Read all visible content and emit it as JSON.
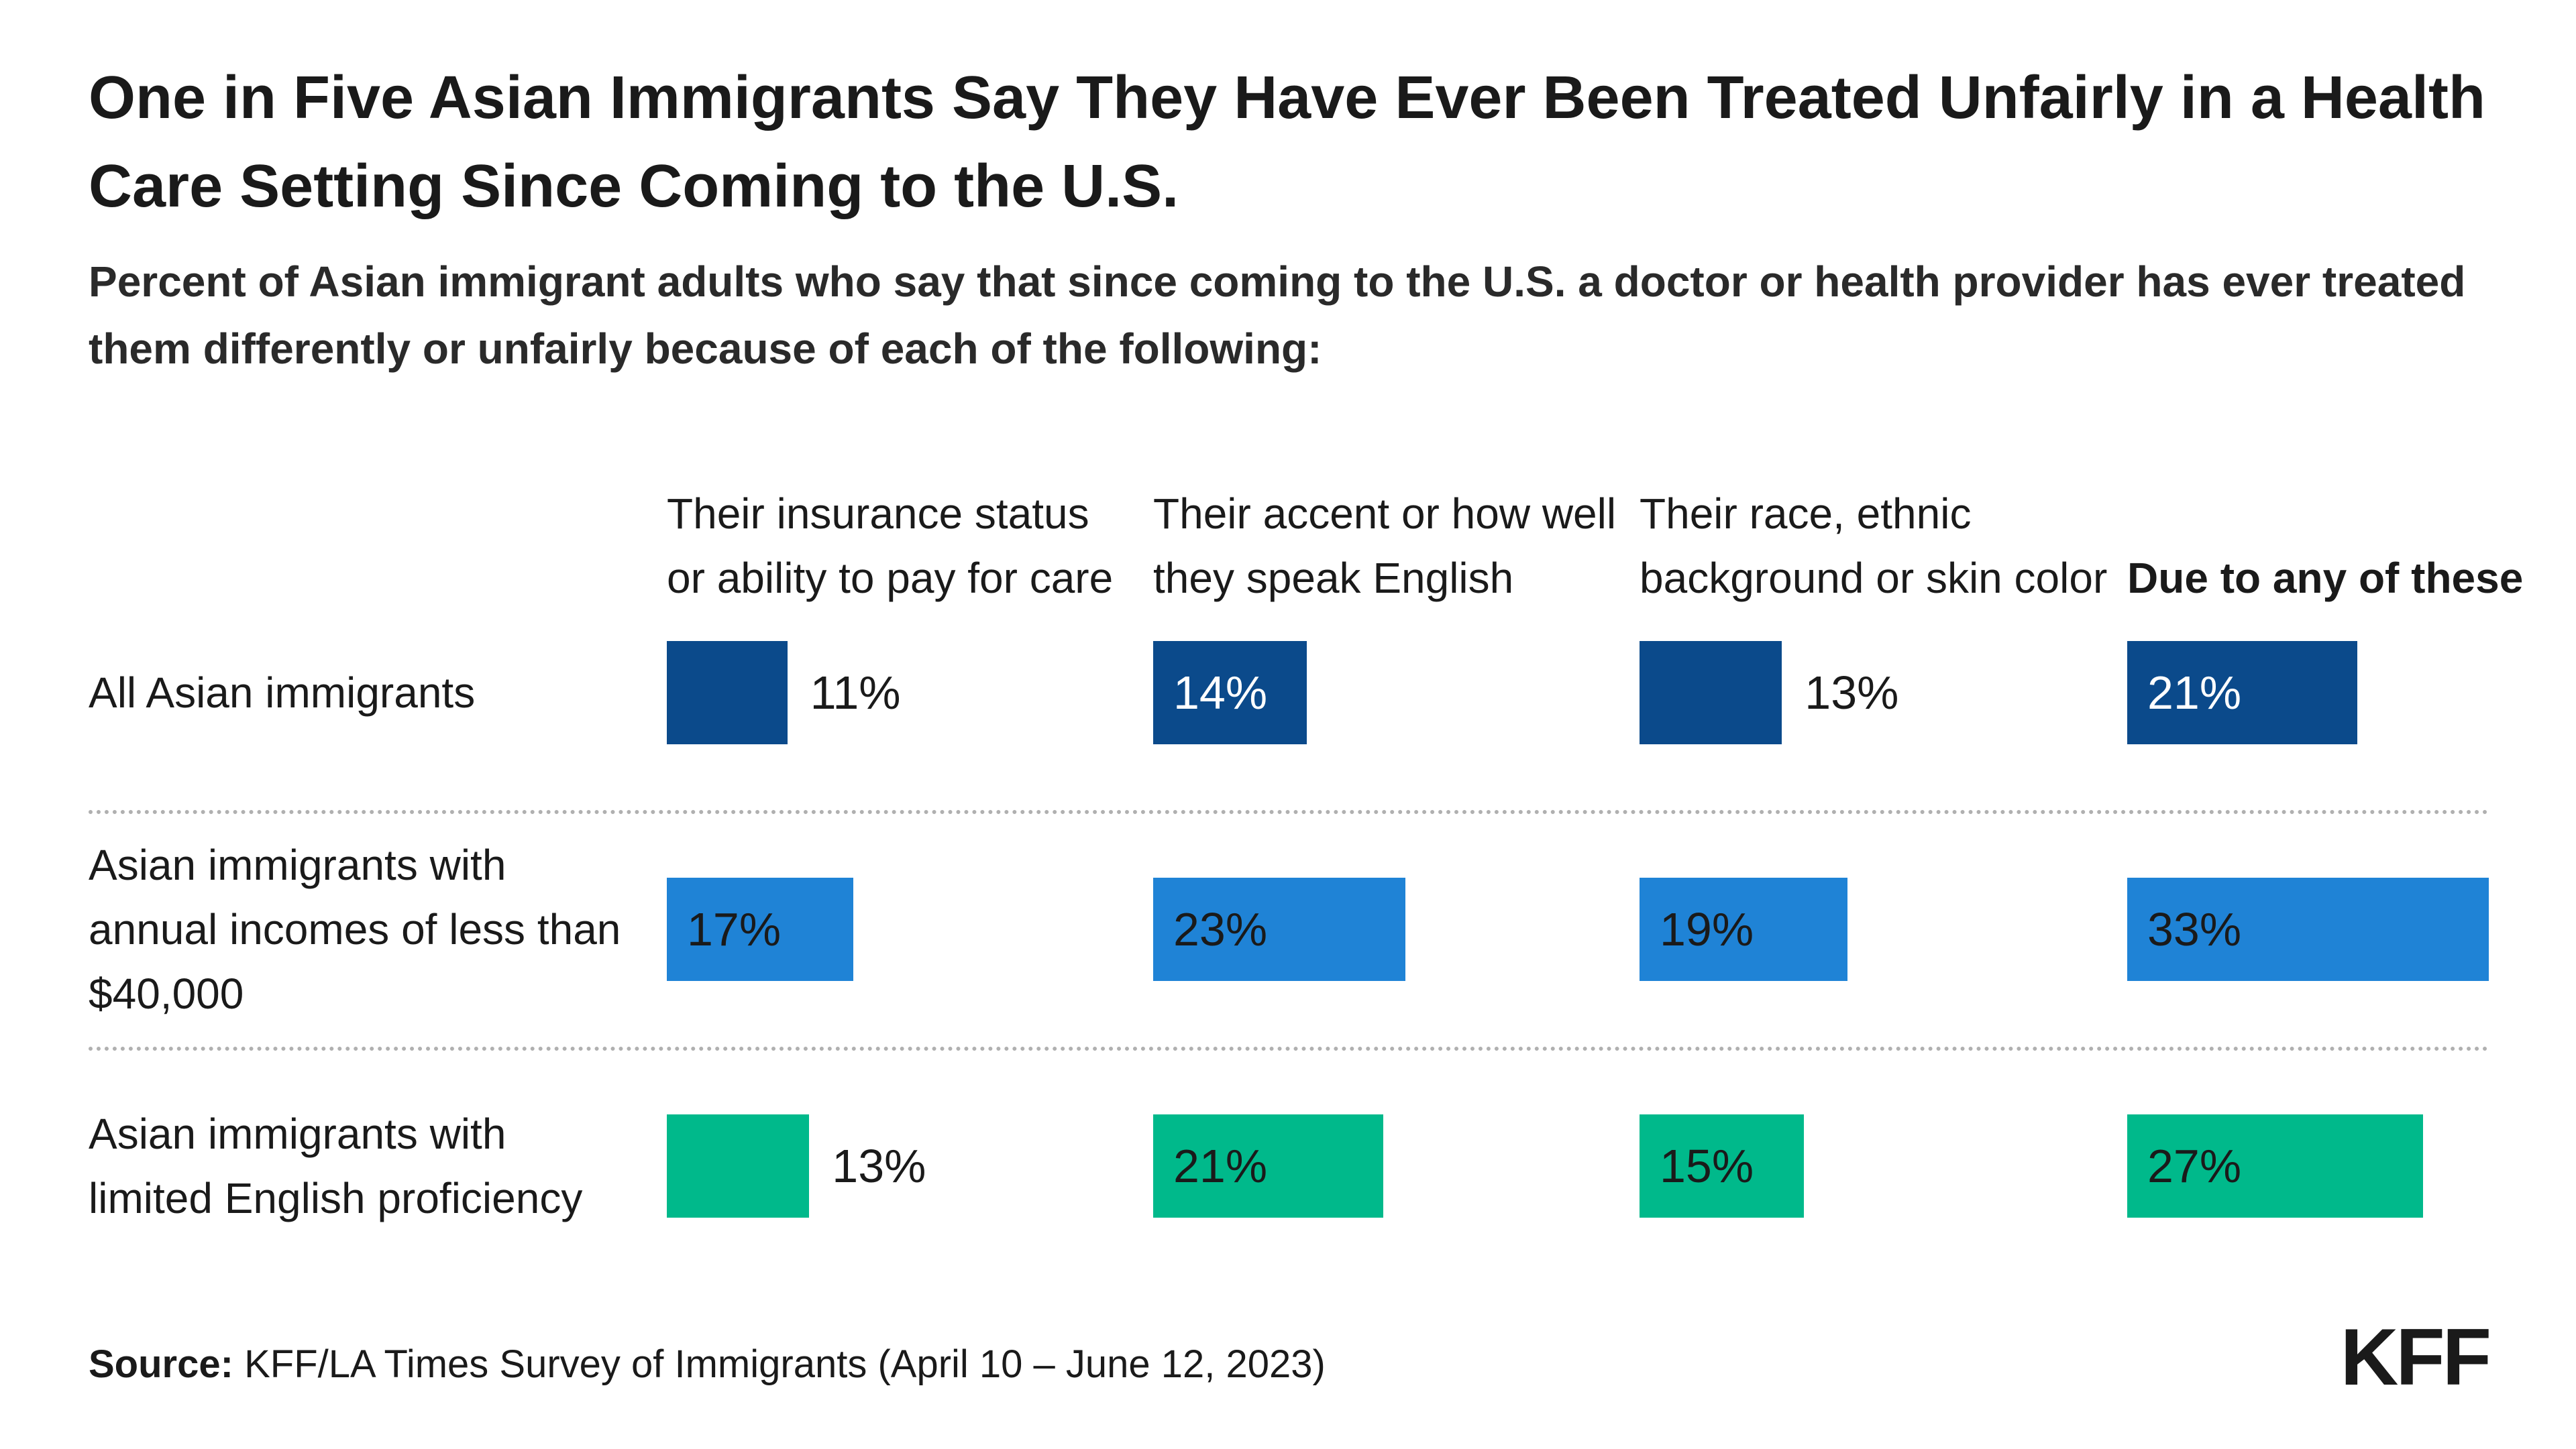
{
  "chart_data": {
    "type": "bar",
    "title": "One in Five Asian Immigrants Say They Have Ever Been Treated Unfairly in a Health Care Setting Since Coming to the U.S.",
    "subtitle": "Percent of Asian immigrant adults who say that since coming to the U.S. a doctor or health provider has ever treated them differently or unfairly because of each of the following:",
    "categories": [
      "All Asian immigrants",
      "Asian immigrants with annual incomes of less than $40,000",
      "Asian immigrants with limited English proficiency"
    ],
    "colors": [
      "#0b4a8b",
      "#1f83d6",
      "#00b98b"
    ],
    "series": [
      {
        "name": "Their insurance status or ability to pay for care",
        "values": [
          11,
          17,
          13
        ],
        "value_labels": [
          "11%",
          "17%",
          "13%"
        ]
      },
      {
        "name": "Their accent or how well they speak English",
        "values": [
          14,
          23,
          21
        ],
        "value_labels": [
          "14%",
          "23%",
          "21%"
        ]
      },
      {
        "name": "Their race, ethnic background or skin color",
        "values": [
          13,
          19,
          15
        ],
        "value_labels": [
          "13%",
          "19%",
          "15%"
        ]
      },
      {
        "name": "Due to any of these",
        "values": [
          21,
          33,
          27
        ],
        "value_labels": [
          "21%",
          "33%",
          "27%"
        ],
        "bold": true
      }
    ],
    "source_label": "Source:",
    "source": "KFF/LA Times Survey of Immigrants (April 10 – June 12, 2023)",
    "logo": "KFF"
  }
}
